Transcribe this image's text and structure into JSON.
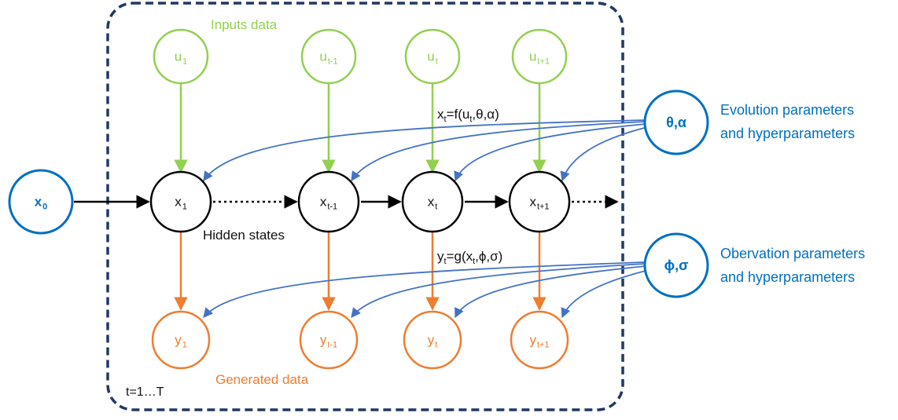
{
  "colors": {
    "input": "#92d050",
    "hidden": "#000000",
    "observed": "#ed7d31",
    "param": "#0070c0",
    "param_arrow": "#4472c4",
    "frame": "#203864"
  },
  "initial_state": {
    "base": "x",
    "sub": "0"
  },
  "inputs_title": "Inputs data",
  "inputs": [
    {
      "base": "u",
      "sub": "1"
    },
    {
      "base": "u",
      "sub": "t-1"
    },
    {
      "base": "u",
      "sub": "t"
    },
    {
      "base": "u",
      "sub": "t+1"
    }
  ],
  "hidden_title": "Hidden states",
  "hidden": [
    {
      "base": "x",
      "sub": "1"
    },
    {
      "base": "x",
      "sub": "t-1"
    },
    {
      "base": "x",
      "sub": "t"
    },
    {
      "base": "x",
      "sub": "t+1"
    }
  ],
  "generated_title": "Generated data",
  "outputs": [
    {
      "base": "y",
      "sub": "1"
    },
    {
      "base": "y",
      "sub": "t-1"
    },
    {
      "base": "y",
      "sub": "t"
    },
    {
      "base": "y",
      "sub": "t+1"
    }
  ],
  "evolution_eq": {
    "lhs": "x",
    "lhs_sub": "t",
    "mid": "=f(u",
    "mid_sub": "t",
    "rhs": ",θ,α)"
  },
  "observation_eq": {
    "lhs": "y",
    "lhs_sub": "t",
    "mid": "=g(x",
    "mid_sub": "t",
    "rhs": ",ϕ,σ)"
  },
  "evolution_params": {
    "symbol": "θ,α",
    "label_line1": "Evolution parameters",
    "label_line2": "and hyperparameters"
  },
  "observation_params": {
    "symbol": "ϕ,σ",
    "label_line1": "Obervation parameters",
    "label_line2": "and hyperparameters"
  },
  "time_range": "t=1…T"
}
